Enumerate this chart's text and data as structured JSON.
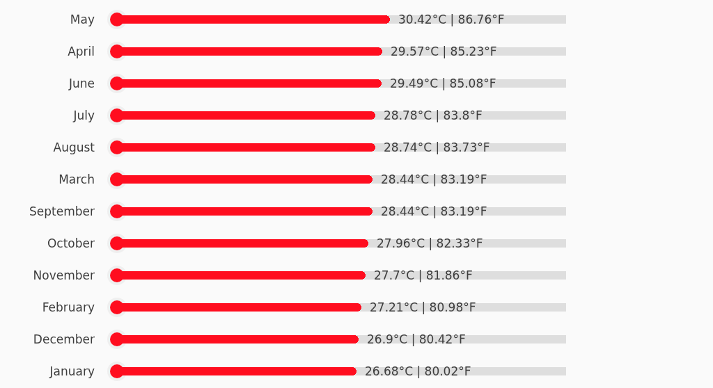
{
  "chart_data": {
    "type": "bar",
    "orientation": "horizontal",
    "categories": [
      "May",
      "April",
      "June",
      "July",
      "August",
      "March",
      "September",
      "October",
      "November",
      "February",
      "December",
      "January"
    ],
    "values": [
      30.42,
      29.57,
      29.49,
      28.78,
      28.74,
      28.44,
      28.44,
      27.96,
      27.7,
      27.21,
      26.9,
      26.68
    ],
    "value_labels": [
      "30.42°C | 86.76°F",
      "29.57°C | 85.23°F",
      "29.49°C | 85.08°F",
      "28.78°C | 83.8°F",
      "28.74°C | 83.73°F",
      "28.44°C | 83.19°F",
      "28.44°C | 83.19°F",
      "27.96°C | 82.33°F",
      "27.7°C | 81.86°F",
      "27.21°C | 80.98°F",
      "26.9°C | 80.42°F",
      "26.68°C | 80.02°F"
    ],
    "color": "#ff0d1f",
    "xlim": [
      0,
      50
    ],
    "grid": "y",
    "tick_labels": "y"
  }
}
